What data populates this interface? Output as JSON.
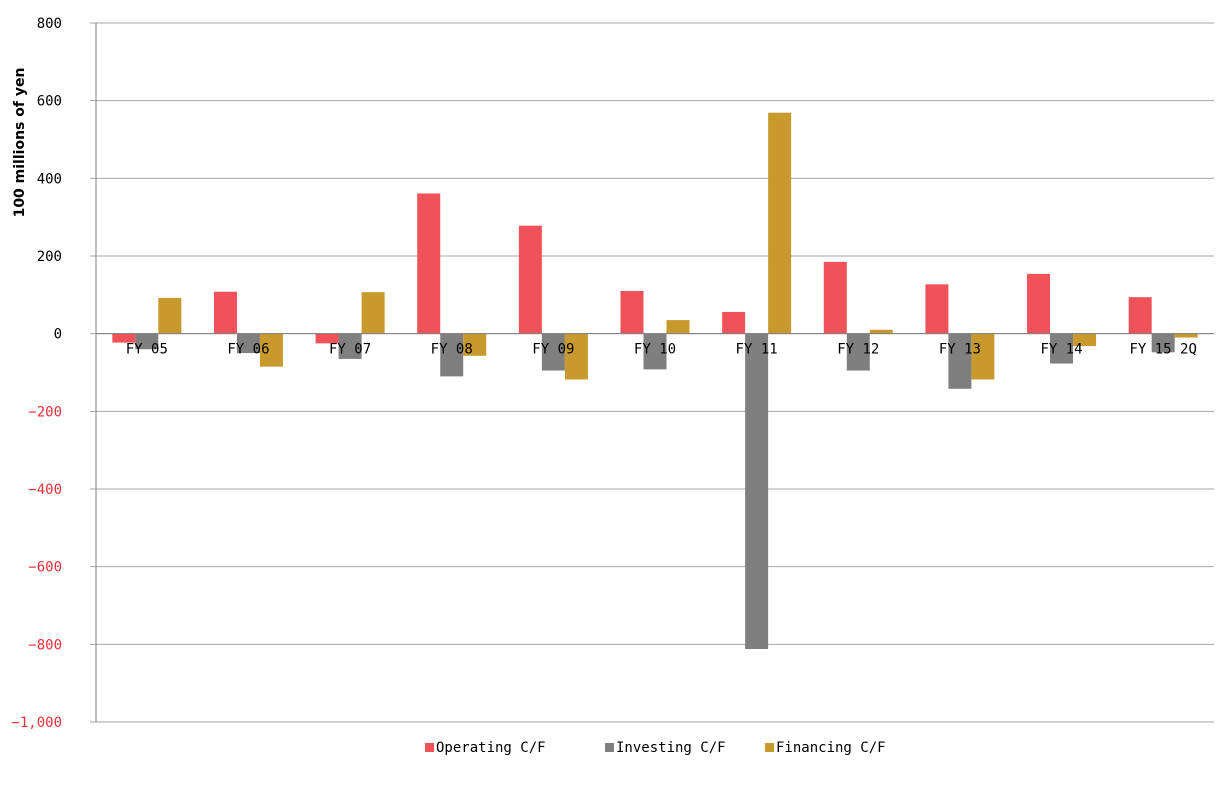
{
  "chart_data": {
    "type": "bar",
    "title": "",
    "xlabel": "",
    "ylabel": "100 millions of yen",
    "ylim": [
      -1000,
      800
    ],
    "yticks": [
      800,
      600,
      400,
      200,
      0,
      -200,
      -400,
      -600,
      -800,
      -1000
    ],
    "ytick_labels": [
      "800",
      "600",
      "400",
      "200",
      "0",
      "−200",
      "−400",
      "−600",
      "−800",
      "−1,000"
    ],
    "negative_tick_color": "#e8313b",
    "grid": true,
    "legend_position": "bottom-center",
    "categories": [
      "FY 05",
      "FY 06",
      "FY 07",
      "FY 08",
      "FY 09",
      "FY 10",
      "FY 11",
      "FY 12",
      "FY 13",
      "FY 14",
      "FY 15 2Q"
    ],
    "series": [
      {
        "name": "Operating C/F",
        "color": "#f0525a",
        "values": [
          -23,
          108,
          -25,
          361,
          278,
          110,
          56,
          185,
          127,
          154,
          94
        ]
      },
      {
        "name": "Investing C/F",
        "color": "#7f7f7f",
        "values": [
          -40,
          -50,
          -65,
          -110,
          -95,
          -92,
          -812,
          -95,
          -142,
          -77,
          -48
        ]
      },
      {
        "name": "Financing C/F",
        "color": "#c89a2e",
        "values": [
          92,
          -85,
          107,
          -57,
          -118,
          35,
          569,
          10,
          -118,
          -32,
          -10
        ]
      }
    ]
  }
}
